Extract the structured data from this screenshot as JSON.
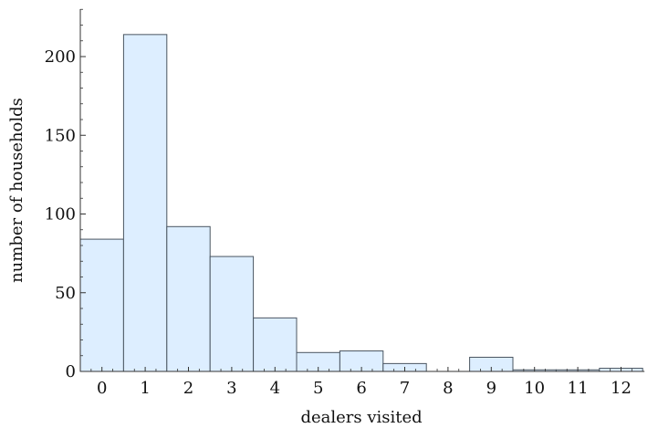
{
  "chart_data": {
    "type": "bar",
    "xlabel": "dealers visited",
    "ylabel": "number of households",
    "categories": [
      "0",
      "1",
      "2",
      "3",
      "4",
      "5",
      "6",
      "7",
      "8",
      "9",
      "10",
      "11",
      "12"
    ],
    "values": [
      84,
      214,
      92,
      73,
      34,
      12,
      13,
      5,
      0,
      9,
      1,
      1,
      2
    ],
    "ylim": [
      0,
      220
    ],
    "yticks": [
      0,
      50,
      100,
      150,
      200
    ],
    "grid": false,
    "colors": {
      "bar_fill": "#ddeeff",
      "bar_stroke": "#4a5560",
      "axis": "#333333"
    }
  }
}
